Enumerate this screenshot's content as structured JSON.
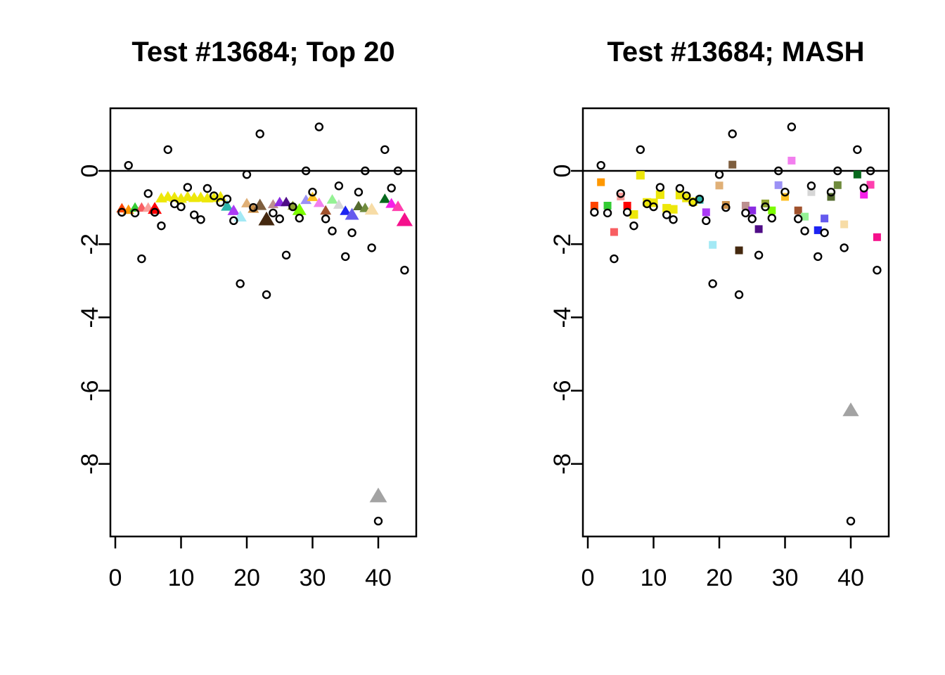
{
  "figure": {
    "background": "#FFFFFF",
    "axis_color": "#000000",
    "circle_marker_color": "#000000"
  },
  "palette": [
    "#FF4500",
    "#FF9800",
    "#33CC33",
    "#F85E62",
    "#F9A09C",
    "#FF0000",
    "#EDE70A",
    "#EDE70A",
    "#EDE70A",
    "#EDE70A",
    "#EDE70A",
    "#EDE70A",
    "#EDE70A",
    "#EDE70A",
    "#EDE70A",
    "#EDE70A",
    "#2CB5AC",
    "#AB3BF5",
    "#A3E9F5",
    "#E0B077",
    "#C98E46",
    "#7E5E3E",
    "#44280F",
    "#BC8F8F",
    "#8A2BE2",
    "#4F0D87",
    "#8FA32E",
    "#7CFC00",
    "#9B91F5",
    "#FFC125",
    "#F27FEE",
    "#A0522D",
    "#94F294",
    "#D6D6D6",
    "#1D24F2",
    "#655AEE",
    "#556B2F",
    "#6F8B3D",
    "#F7DCA6",
    "#A3A3A3",
    "#07691D",
    "#F520E8",
    "#FF3FAE",
    "#F5108C"
  ],
  "chart_data": [
    {
      "type": "scatter",
      "title": "Test #13684; Top 20",
      "xlabel": "",
      "ylabel": "",
      "xlim": [
        -0.75,
        45.8
      ],
      "ylim": [
        -9.98,
        1.71
      ],
      "xticks": [
        0,
        10,
        20,
        30,
        40
      ],
      "xtick_labels": [
        "0",
        "10",
        "20",
        "30",
        "40"
      ],
      "yticks": [
        0,
        -2,
        -4,
        -6,
        -8
      ],
      "ytick_labels": [
        "0",
        "-2",
        "-4",
        "-6",
        "-8"
      ],
      "grid": false,
      "legend": "none",
      "zero_line": true,
      "default_marker": "triangle",
      "series": [
        {
          "name": "colored-estimates",
          "marker": "triangle",
          "points": [
            [
              1,
              -1.02,
              1
            ],
            [
              2,
              -1.06,
              1
            ],
            [
              3,
              -1.0,
              1
            ],
            [
              4,
              -1.0,
              1
            ],
            [
              5,
              -1.0,
              1
            ],
            [
              6,
              -1.03,
              1.25
            ],
            [
              7,
              -0.74,
              1.05
            ],
            [
              8,
              -0.7,
              1.05
            ],
            [
              9,
              -0.72,
              1.05
            ],
            [
              10,
              -0.75,
              1.05
            ],
            [
              11,
              -0.7,
              1.05
            ],
            [
              12,
              -0.73,
              1.05
            ],
            [
              13,
              -0.72,
              1.05
            ],
            [
              14,
              -0.74,
              1.05
            ],
            [
              15,
              -0.73,
              1.05
            ],
            [
              16,
              -0.7,
              1.05
            ],
            [
              17,
              -0.96,
              1.1
            ],
            [
              18,
              -1.08,
              1.1
            ],
            [
              19,
              -1.25,
              1.15
            ],
            [
              20,
              -0.88,
              1
            ],
            [
              21,
              -1.03,
              1
            ],
            [
              22,
              -0.93,
              1.2
            ],
            [
              23,
              -1.32,
              1.45
            ],
            [
              24,
              -0.91,
              0.95
            ],
            [
              25,
              -0.85,
              1
            ],
            [
              26,
              -0.85,
              1
            ],
            [
              27,
              -0.95,
              0.95
            ],
            [
              28,
              -1.06,
              1.25
            ],
            [
              29,
              -0.79,
              1
            ],
            [
              30,
              -0.71,
              1
            ],
            [
              31,
              -0.87,
              1
            ],
            [
              32,
              -1.08,
              1
            ],
            [
              33,
              -0.78,
              1
            ],
            [
              34,
              -0.92,
              1
            ],
            [
              35,
              -1.09,
              1
            ],
            [
              36,
              -1.19,
              1.25
            ],
            [
              37,
              -0.96,
              1
            ],
            [
              38,
              -1.01,
              1
            ],
            [
              39,
              -1.05,
              1.25
            ],
            [
              40,
              -8.87,
              1.55
            ],
            [
              41,
              -0.76,
              1
            ],
            [
              42,
              -0.89,
              1.05
            ],
            [
              43,
              -0.97,
              1.1
            ],
            [
              44,
              -1.34,
              1.45
            ]
          ]
        },
        {
          "name": "observed-open-circles",
          "marker": "circle",
          "points": [
            [
              1,
              -1.13
            ],
            [
              2,
              0.15
            ],
            [
              3,
              -1.15
            ],
            [
              4,
              -2.4
            ],
            [
              5,
              -0.62
            ],
            [
              6,
              -1.13
            ],
            [
              7,
              -1.5
            ],
            [
              8,
              0.58
            ],
            [
              9,
              -0.9
            ],
            [
              10,
              -0.98
            ],
            [
              11,
              -0.45
            ],
            [
              12,
              -1.2
            ],
            [
              13,
              -1.33
            ],
            [
              14,
              -0.48
            ],
            [
              15,
              -0.68
            ],
            [
              16,
              -0.86
            ],
            [
              17,
              -0.77
            ],
            [
              18,
              -1.36
            ],
            [
              19,
              -3.08
            ],
            [
              20,
              -0.1
            ],
            [
              21,
              -1.0
            ],
            [
              22,
              1.01
            ],
            [
              23,
              -3.38
            ],
            [
              24,
              -1.15
            ],
            [
              25,
              -1.31
            ],
            [
              26,
              -2.3
            ],
            [
              27,
              -0.98
            ],
            [
              28,
              -1.29
            ],
            [
              29,
              0.0
            ],
            [
              30,
              -0.58
            ],
            [
              31,
              1.2
            ],
            [
              32,
              -1.31
            ],
            [
              33,
              -1.64
            ],
            [
              34,
              -0.41
            ],
            [
              35,
              -2.34
            ],
            [
              36,
              -1.69
            ],
            [
              37,
              -0.58
            ],
            [
              38,
              0.0
            ],
            [
              39,
              -2.1
            ],
            [
              40,
              -9.56
            ],
            [
              41,
              0.58
            ],
            [
              42,
              -0.47
            ],
            [
              43,
              0.0
            ],
            [
              44,
              -2.71
            ]
          ]
        }
      ]
    },
    {
      "type": "scatter",
      "title": "Test #13684; MASH",
      "xlabel": "",
      "ylabel": "",
      "xlim": [
        -0.75,
        45.8
      ],
      "ylim": [
        -9.98,
        1.71
      ],
      "xticks": [
        0,
        10,
        20,
        30,
        40
      ],
      "xtick_labels": [
        "0",
        "10",
        "20",
        "30",
        "40"
      ],
      "yticks": [
        0,
        -2,
        -4,
        -6,
        -8
      ],
      "ytick_labels": [
        "0",
        "-2",
        "-4",
        "-6",
        "-8"
      ],
      "grid": false,
      "legend": "none",
      "zero_line": true,
      "default_marker": "square",
      "series": [
        {
          "name": "colored-estimates",
          "marker": "square",
          "points": [
            [
              1,
              -0.95,
              1
            ],
            [
              2,
              -0.31,
              1
            ],
            [
              3,
              -0.95,
              1
            ],
            [
              4,
              -1.67,
              1
            ],
            [
              5,
              -0.7,
              1
            ],
            [
              6,
              -0.95,
              1
            ],
            [
              7,
              -1.19,
              1.1
            ],
            [
              8,
              -0.12,
              1.1
            ],
            [
              9,
              -0.86,
              1.1
            ],
            [
              10,
              -0.87,
              1.1
            ],
            [
              11,
              -0.65,
              1.1
            ],
            [
              12,
              -1.02,
              1.1
            ],
            [
              13,
              -1.05,
              1.1
            ],
            [
              14,
              -0.66,
              1.1
            ],
            [
              15,
              -0.74,
              1.1
            ],
            [
              16,
              -0.84,
              1.1
            ],
            [
              17,
              -0.79,
              1
            ],
            [
              18,
              -1.13,
              1
            ],
            [
              19,
              -2.02,
              1
            ],
            [
              20,
              -0.4,
              1
            ],
            [
              21,
              -0.93,
              1
            ],
            [
              22,
              0.17,
              1
            ],
            [
              23,
              -2.17,
              1
            ],
            [
              24,
              -0.95,
              1
            ],
            [
              25,
              -1.08,
              1
            ],
            [
              26,
              -1.59,
              1
            ],
            [
              27,
              -0.89,
              1
            ],
            [
              28,
              -1.08,
              1
            ],
            [
              29,
              -0.39,
              1
            ],
            [
              30,
              -0.71,
              1
            ],
            [
              31,
              0.28,
              1
            ],
            [
              32,
              -1.08,
              1
            ],
            [
              33,
              -1.25,
              1
            ],
            [
              34,
              -0.58,
              1
            ],
            [
              35,
              -1.62,
              1
            ],
            [
              36,
              -1.3,
              1
            ],
            [
              37,
              -0.71,
              1
            ],
            [
              38,
              -0.39,
              1
            ],
            [
              39,
              -1.46,
              1
            ],
            [
              40,
              -6.53,
              1.45,
              "triangle"
            ],
            [
              41,
              -0.1,
              1
            ],
            [
              42,
              -0.65,
              1
            ],
            [
              43,
              -0.38,
              1
            ],
            [
              44,
              -1.81,
              1
            ]
          ]
        },
        {
          "name": "observed-open-circles",
          "marker": "circle",
          "points": [
            [
              1,
              -1.13
            ],
            [
              2,
              0.15
            ],
            [
              3,
              -1.15
            ],
            [
              4,
              -2.4
            ],
            [
              5,
              -0.62
            ],
            [
              6,
              -1.13
            ],
            [
              7,
              -1.5
            ],
            [
              8,
              0.58
            ],
            [
              9,
              -0.9
            ],
            [
              10,
              -0.98
            ],
            [
              11,
              -0.45
            ],
            [
              12,
              -1.2
            ],
            [
              13,
              -1.33
            ],
            [
              14,
              -0.48
            ],
            [
              15,
              -0.68
            ],
            [
              16,
              -0.86
            ],
            [
              17,
              -0.77
            ],
            [
              18,
              -1.36
            ],
            [
              19,
              -3.08
            ],
            [
              20,
              -0.1
            ],
            [
              21,
              -1.0
            ],
            [
              22,
              1.01
            ],
            [
              23,
              -3.38
            ],
            [
              24,
              -1.15
            ],
            [
              25,
              -1.31
            ],
            [
              26,
              -2.3
            ],
            [
              27,
              -0.98
            ],
            [
              28,
              -1.29
            ],
            [
              29,
              0.0
            ],
            [
              30,
              -0.58
            ],
            [
              31,
              1.2
            ],
            [
              32,
              -1.31
            ],
            [
              33,
              -1.64
            ],
            [
              34,
              -0.41
            ],
            [
              35,
              -2.34
            ],
            [
              36,
              -1.69
            ],
            [
              37,
              -0.58
            ],
            [
              38,
              0.0
            ],
            [
              39,
              -2.1
            ],
            [
              40,
              -9.56
            ],
            [
              41,
              0.58
            ],
            [
              42,
              -0.47
            ],
            [
              43,
              0.0
            ],
            [
              44,
              -2.71
            ]
          ]
        }
      ]
    }
  ]
}
